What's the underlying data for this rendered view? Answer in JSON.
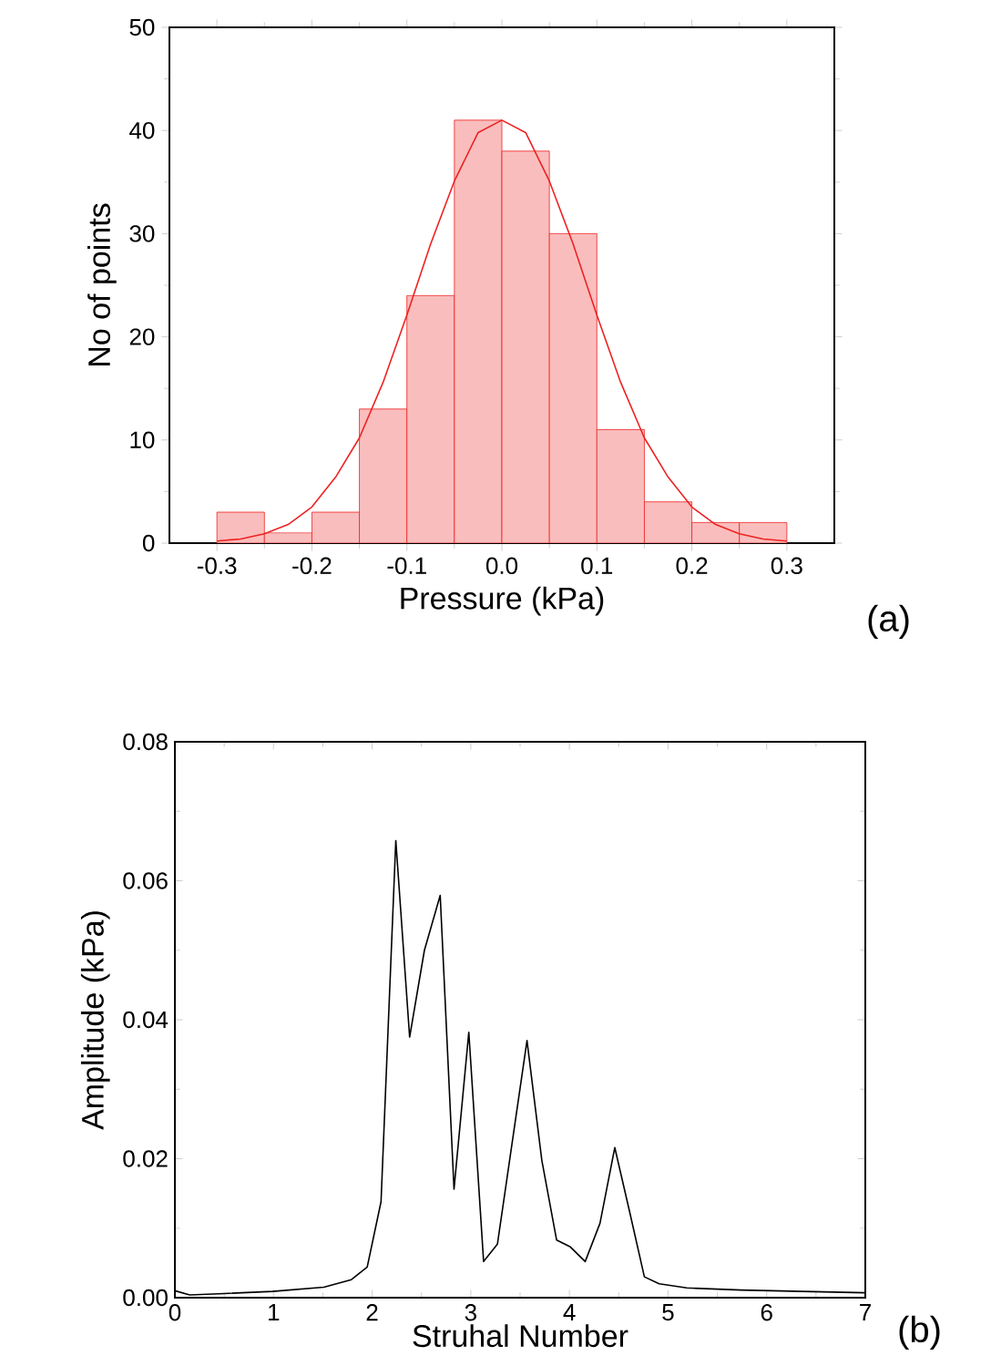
{
  "chart_data": [
    {
      "type": "histogram",
      "xlabel": "Pressure (kPa)",
      "ylabel": "No of points",
      "annotations": [
        "(a)"
      ],
      "color": "#ee2222",
      "bins": [
        -0.3,
        -0.25,
        -0.2,
        -0.15,
        -0.1,
        -0.05,
        0,
        0.05,
        0.1,
        0.15,
        0.2,
        0.25,
        0.3
      ],
      "values": [
        3,
        1,
        3,
        13,
        24,
        41,
        38,
        30,
        11,
        4,
        2,
        2
      ],
      "series": [
        {
          "type": "line",
          "color": "#ee2222",
          "x": [
            -0.3,
            -0.275,
            -0.25,
            -0.225,
            -0.2,
            -0.175,
            -0.15,
            -0.125,
            -0.1,
            -0.075,
            -0.05,
            -0.025,
            0,
            0.025,
            0.05,
            0.075,
            0.1,
            0.125,
            0.15,
            0.175,
            0.2,
            0.225,
            0.25,
            0.275,
            0.3
          ],
          "values": [
            0.2,
            0.4,
            0.9,
            1.8,
            3.5,
            6.4,
            10.2,
            15.6,
            22.1,
            29,
            35.1,
            39.8,
            41,
            39.8,
            35.1,
            29,
            22.1,
            15.6,
            10.2,
            6.4,
            3.5,
            1.8,
            0.9,
            0.4,
            0.2
          ]
        }
      ],
      "xlim": [
        -0.35,
        0.35
      ],
      "ylim": [
        0,
        50
      ],
      "xticks": [
        -0.3,
        -0.2,
        -0.1,
        {
          "value": 0,
          "label": "0.0"
        },
        0.1,
        0.2,
        0.3
      ],
      "yticks": [
        0,
        10,
        20,
        30,
        40,
        50
      ]
    },
    {
      "type": "line",
      "xlabel": "Struhal Number",
      "ylabel": "Amplitude (kPa)",
      "annotations": [
        "(b)"
      ],
      "series": [
        {
          "color": "#000000",
          "x": [
            0,
            0.15,
            0.5,
            0.99,
            1.51,
            1.79,
            1.95,
            2.09,
            2.24,
            2.38,
            2.53,
            2.69,
            2.83,
            2.98,
            3.13,
            3.27,
            3.57,
            3.72,
            3.87,
            4.01,
            4.16,
            4.31,
            4.46,
            4.61,
            4.76,
            4.91,
            5.19,
            5.74,
            6.36,
            7
          ],
          "values": [
            0.001,
            0.0004,
            0.0006,
            0.0009,
            0.0015,
            0.0026,
            0.0044,
            0.0138,
            0.0658,
            0.0375,
            0.05,
            0.0579,
            0.0156,
            0.0382,
            0.0052,
            0.0077,
            0.037,
            0.0198,
            0.0083,
            0.0073,
            0.0052,
            0.0107,
            0.0216,
            0.0124,
            0.003,
            0.002,
            0.0014,
            0.0011,
            0.0009,
            0.0007
          ]
        }
      ],
      "xlim": [
        0,
        7
      ],
      "ylim": [
        0,
        0.08
      ],
      "xticks": [
        0,
        1,
        2,
        3,
        4,
        5,
        6,
        7
      ],
      "yticks": [
        {
          "value": 0,
          "label": "0.00"
        },
        {
          "value": 0.02,
          "label": "0.02"
        },
        {
          "value": 0.04,
          "label": "0.04"
        },
        {
          "value": 0.06,
          "label": "0.06"
        },
        {
          "value": 0.08,
          "label": "0.08"
        }
      ]
    }
  ]
}
